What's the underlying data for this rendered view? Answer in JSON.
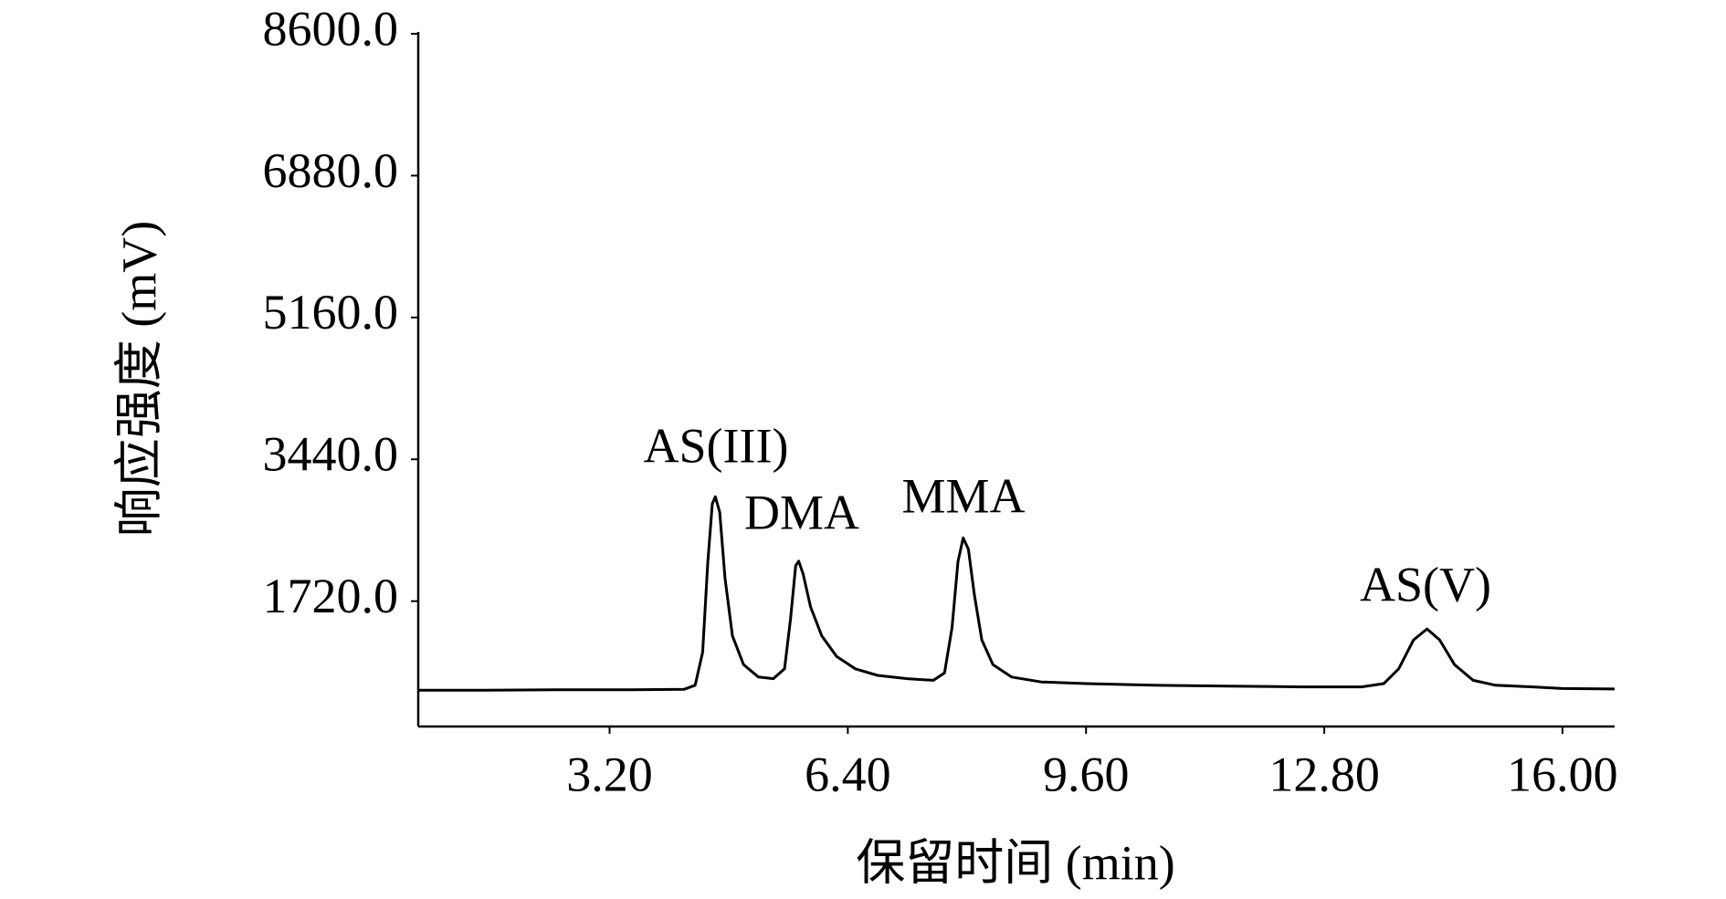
{
  "chart_data": {
    "type": "line",
    "x_label": "保留时间 (min)",
    "y_label": "响应强度 (mV)",
    "xlim": [
      0.63,
      16.7
    ],
    "ylim": [
      200,
      8600
    ],
    "xticks": [
      {
        "value": 3.2,
        "label": "3.20"
      },
      {
        "value": 6.4,
        "label": "6.40"
      },
      {
        "value": 9.6,
        "label": "9.60"
      },
      {
        "value": 12.8,
        "label": "12.80"
      },
      {
        "value": 16,
        "label": "16.00"
      }
    ],
    "yticks": [
      {
        "value": 1720,
        "label": "1720.0"
      },
      {
        "value": 3440,
        "label": "3440.0"
      },
      {
        "value": 5160,
        "label": "5160.0"
      },
      {
        "value": 6880,
        "label": "6880.0"
      },
      {
        "value": 8600,
        "label": "8600.0"
      }
    ],
    "grid": false,
    "annotations": [
      "AS(III)",
      "DMA",
      "MMA",
      "AS(V)"
    ],
    "series": [
      {
        "color": "#000000",
        "x": [
          0.63,
          1.5,
          2.5,
          3.5,
          4.2,
          4.35,
          4.45,
          4.52,
          4.58,
          4.62,
          4.68,
          4.75,
          4.85,
          5.0,
          5.2,
          5.4,
          5.55,
          5.63,
          5.7,
          5.74,
          5.8,
          5.9,
          6.05,
          6.25,
          6.5,
          6.8,
          7.2,
          7.55,
          7.7,
          7.8,
          7.88,
          7.95,
          8.02,
          8.1,
          8.2,
          8.35,
          8.6,
          9.0,
          9.6,
          10.5,
          11.5,
          12.5,
          13.3,
          13.6,
          13.8,
          14.0,
          14.18,
          14.35,
          14.55,
          14.8,
          15.1,
          15.6,
          16.0,
          16.7
        ],
        "values": [
          640,
          640,
          645,
          645,
          650,
          700,
          1100,
          2200,
          2900,
          2986,
          2800,
          2000,
          1300,
          950,
          800,
          780,
          900,
          1500,
          2150,
          2205,
          2050,
          1650,
          1300,
          1050,
          900,
          820,
          780,
          760,
          850,
          1400,
          2200,
          2487,
          2350,
          1800,
          1250,
          950,
          800,
          740,
          720,
          700,
          690,
          680,
          680,
          720,
          900,
          1250,
          1383,
          1250,
          950,
          760,
          700,
          680,
          660,
          655
        ]
      }
    ]
  }
}
